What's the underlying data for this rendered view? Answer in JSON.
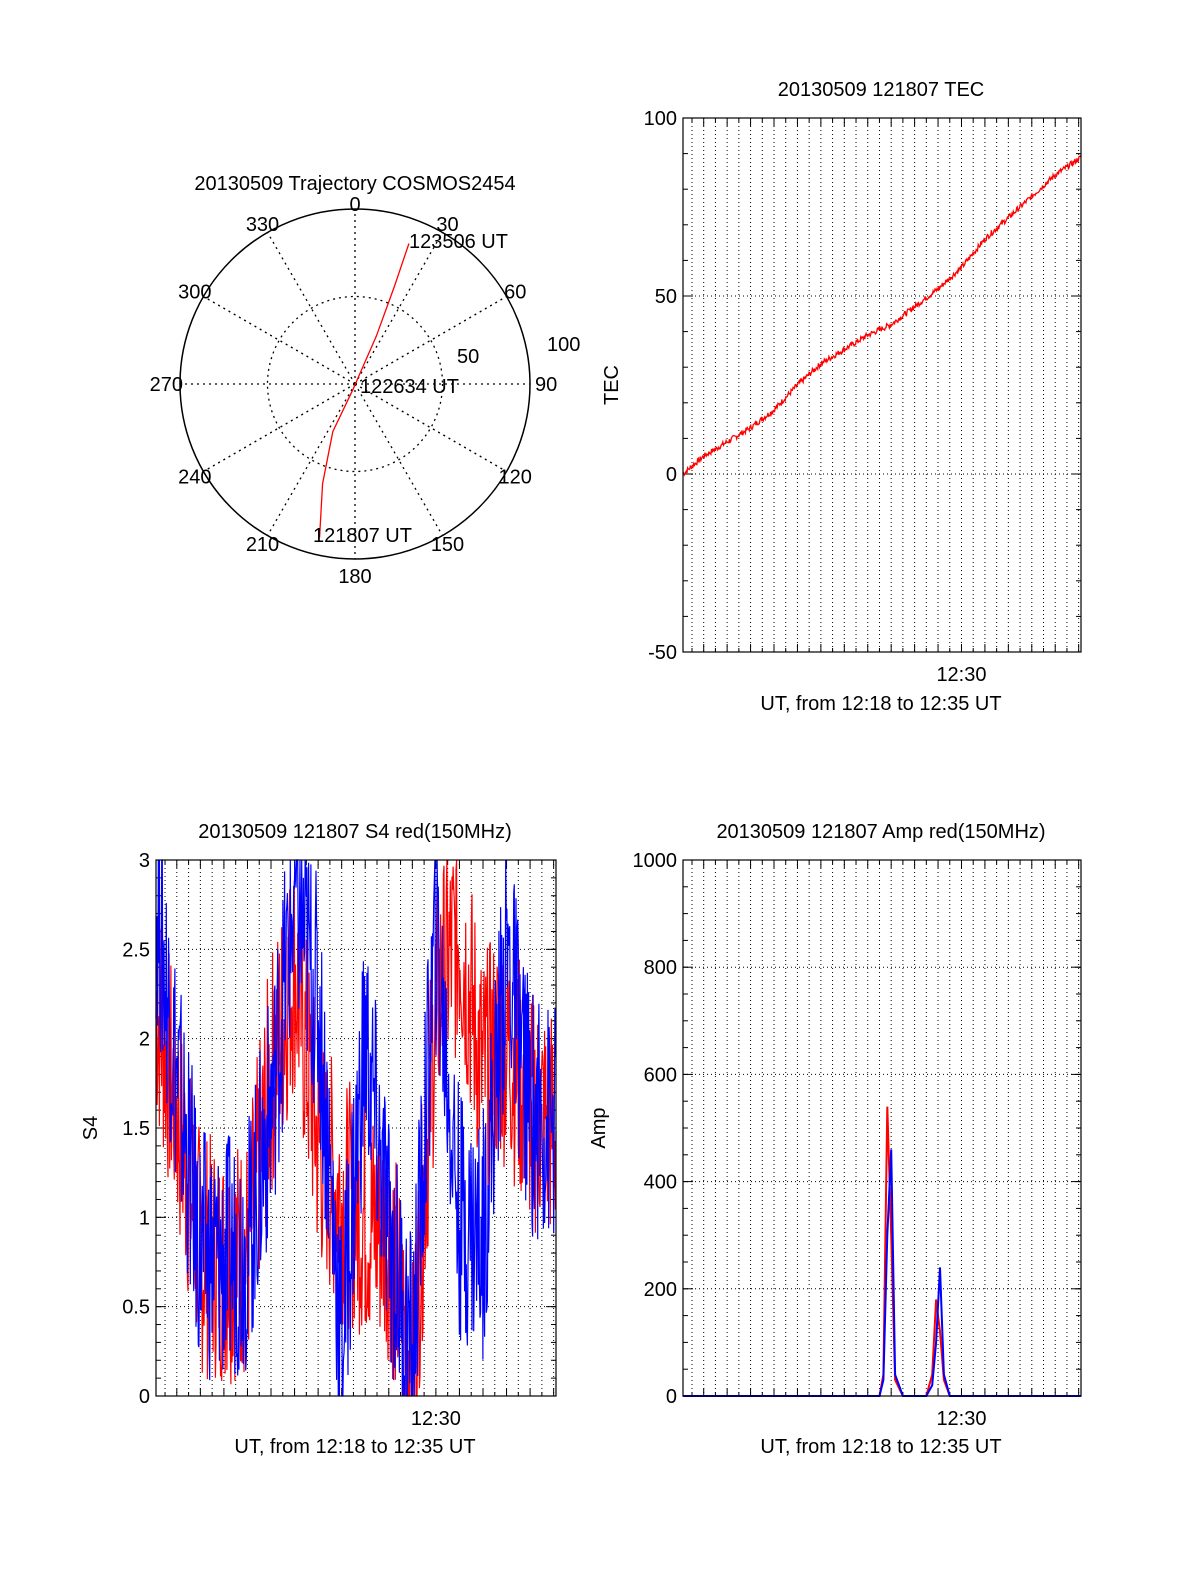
{
  "colors": {
    "red": "#ff0000",
    "blue": "#0000ff",
    "axis": "#000000",
    "grid": "#000000"
  },
  "chart_data": [
    {
      "type": "polar",
      "title": "20130509 Trajectory COSMOS2454",
      "azimuth_labels": [
        "0",
        "30",
        "60",
        "90",
        "120",
        "150",
        "180",
        "210",
        "240",
        "270",
        "300",
        "330"
      ],
      "radial_labels": [
        "50",
        "100"
      ],
      "rlim": [
        0,
        100
      ],
      "grid": true,
      "annotations": [
        "123506 UT",
        "122634 UT",
        "121807 UT"
      ],
      "trajectory": {
        "color": "red",
        "points": [
          {
            "azimuth": 193,
            "zenith": 90,
            "label": "121807 UT"
          },
          {
            "azimuth": 198,
            "zenith": 60
          },
          {
            "azimuth": 205,
            "zenith": 30
          },
          {
            "azimuth": 200,
            "zenith": 3,
            "label": "122634 UT"
          },
          {
            "azimuth": 24,
            "zenith": 30
          },
          {
            "azimuth": 22,
            "zenith": 60
          },
          {
            "azimuth": 21,
            "zenith": 86,
            "label": "123506 UT"
          }
        ]
      }
    },
    {
      "type": "line",
      "title": "20130509 121807 TEC",
      "xlabel": "UT, from 12:18 to 12:35 UT",
      "ylabel": "TEC",
      "x_tick_labels": [
        "12:30"
      ],
      "xlim": [
        "12:18:07",
        "12:35:06"
      ],
      "ylim": [
        -50,
        100
      ],
      "y_ticks": [
        100,
        50,
        0,
        -50
      ],
      "grid": true,
      "series": [
        {
          "color": "red",
          "x": [
            "12:18:07",
            "12:19:00",
            "12:20:00",
            "12:21:00",
            "12:22:00",
            "12:23:00",
            "12:24:00",
            "12:25:00",
            "12:26:00",
            "12:27:00",
            "12:28:00",
            "12:29:00",
            "12:30:00",
            "12:31:00",
            "12:32:00",
            "12:33:00",
            "12:34:00",
            "12:35:06"
          ],
          "y": [
            0,
            5,
            9,
            13,
            18,
            25,
            31,
            35,
            39,
            42,
            47,
            52,
            58,
            66,
            72,
            78,
            84,
            89
          ]
        }
      ]
    },
    {
      "type": "line",
      "title": "20130509 121807 S4 red(150MHz)",
      "xlabel": "UT, from 12:18 to 12:35 UT",
      "ylabel": "S4",
      "x_tick_labels": [
        "12:30"
      ],
      "xlim": [
        "12:18:07",
        "12:35:06"
      ],
      "ylim": [
        0,
        3
      ],
      "y_ticks": [
        3,
        2.5,
        2,
        1.5,
        1,
        0.5,
        0
      ],
      "grid": true,
      "series": [
        {
          "color": "red",
          "x": [
            "12:18:07",
            "12:19:00",
            "12:20:00",
            "12:21:00",
            "12:22:00",
            "12:23:00",
            "12:24:00",
            "12:25:00",
            "12:26:00",
            "12:27:00",
            "12:28:00",
            "12:29:00",
            "12:30:00",
            "12:31:00",
            "12:32:00",
            "12:33:00",
            "12:34:00",
            "12:35:06"
          ],
          "y": [
            2.2,
            1.6,
            0.8,
            0.75,
            0.8,
            1.8,
            2.4,
            1.4,
            1.1,
            1.0,
            0.9,
            0.1,
            2.2,
            2.6,
            1.8,
            2.0,
            1.6,
            1.5
          ]
        },
        {
          "color": "blue",
          "x": [
            "12:18:07",
            "12:19:00",
            "12:20:00",
            "12:21:00",
            "12:22:00",
            "12:23:00",
            "12:24:00",
            "12:25:00",
            "12:26:00",
            "12:27:00",
            "12:28:00",
            "12:29:00",
            "12:30:00",
            "12:31:00",
            "12:32:00",
            "12:33:00",
            "12:34:00",
            "12:35:06"
          ],
          "y": [
            2.8,
            1.8,
            0.8,
            0.75,
            0.85,
            1.6,
            2.8,
            2.2,
            0.3,
            2.0,
            0.9,
            0.2,
            2.6,
            1.0,
            0.9,
            2.5,
            1.6,
            1.5
          ]
        }
      ]
    },
    {
      "type": "line",
      "title": "20130509 121807 Amp red(150MHz)",
      "xlabel": "UT, from 12:18 to 12:35 UT",
      "ylabel": "Amp",
      "x_tick_labels": [
        "12:30"
      ],
      "xlim": [
        "12:18:07",
        "12:35:06"
      ],
      "ylim": [
        0,
        1000
      ],
      "y_ticks": [
        1000,
        800,
        600,
        400,
        200,
        0
      ],
      "grid": true,
      "series": [
        {
          "color": "red",
          "x": [
            "12:18:07",
            "12:26:30",
            "12:26:40",
            "12:26:50",
            "12:27:00",
            "12:27:10",
            "12:27:30",
            "12:28:30",
            "12:28:45",
            "12:28:55",
            "12:29:05",
            "12:29:15",
            "12:29:30",
            "12:35:06"
          ],
          "y": [
            0,
            0,
            40,
            540,
            300,
            30,
            0,
            0,
            40,
            180,
            120,
            30,
            0,
            0
          ]
        },
        {
          "color": "blue",
          "x": [
            "12:18:07",
            "12:26:30",
            "12:26:40",
            "12:26:50",
            "12:27:00",
            "12:27:10",
            "12:27:30",
            "12:28:30",
            "12:28:45",
            "12:28:55",
            "12:29:05",
            "12:29:15",
            "12:29:30",
            "12:35:06"
          ],
          "y": [
            0,
            0,
            30,
            300,
            460,
            40,
            0,
            0,
            20,
            100,
            240,
            40,
            0,
            0
          ]
        }
      ]
    }
  ]
}
